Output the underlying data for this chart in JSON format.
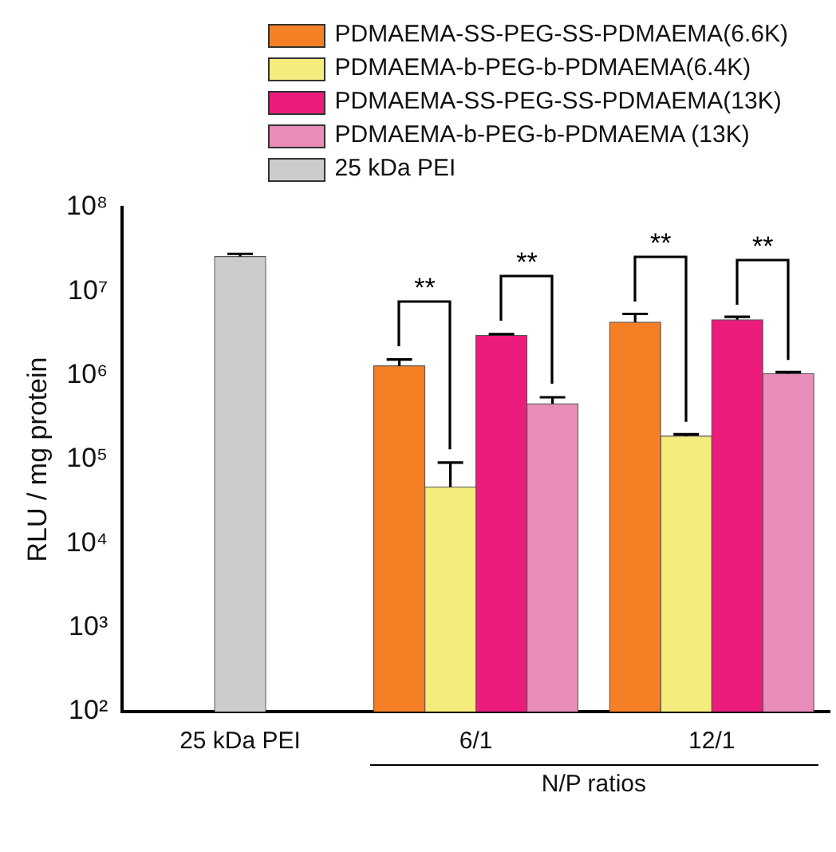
{
  "chart_data": {
    "type": "bar",
    "ylabel": "RLU / mg protein",
    "xlabel": "N/P ratios",
    "categories": [
      "25 kDa PEI",
      "6/1",
      "12/1"
    ],
    "series": [
      {
        "name": "PDMAEMA-SS-PEG-SS-PDMAEMA(6.6K)",
        "color": "#f47f24",
        "values": [
          null,
          1300000,
          4300000
        ],
        "errors": [
          null,
          [
            1300000,
            1550000
          ],
          [
            4300000,
            5400000
          ]
        ]
      },
      {
        "name": "PDMAEMA-b-PEG-b-PDMAEMA(6.4K)",
        "color": "#f4ec7c",
        "values": [
          null,
          47000,
          190000
        ],
        "errors": [
          null,
          [
            47000,
            92000
          ],
          [
            190000,
            200000
          ]
        ]
      },
      {
        "name": "PDMAEMA-SS-PEG-SS-PDMAEMA(13K)",
        "color": "#ec1c7c",
        "values": [
          null,
          3000000,
          4600000
        ],
        "errors": [
          null,
          [
            3000000,
            3100000
          ],
          [
            4600000,
            5000000
          ]
        ]
      },
      {
        "name": "PDMAEMA-b-PEG-b-PDMAEMA (13K)",
        "color": "#e88cb8",
        "values": [
          null,
          460000,
          1050000
        ],
        "errors": [
          null,
          [
            460000,
            550000
          ],
          [
            1050000,
            1100000
          ]
        ]
      },
      {
        "name": "25 kDa PEI",
        "color": "#cccccc",
        "values": [
          26000000,
          null,
          null
        ],
        "errors": [
          [
            26000000,
            28000000
          ],
          null,
          null
        ]
      }
    ],
    "log": "y",
    "ylim": [
      100,
      100000000
    ],
    "yticks": [
      {
        "value": 100,
        "label": "10²"
      },
      {
        "value": 1000,
        "label": "10³"
      },
      {
        "value": 10000,
        "label": "10⁴"
      },
      {
        "value": 100000,
        "label": "10⁵"
      },
      {
        "value": 1000000,
        "label": "10⁶"
      },
      {
        "value": 10000000,
        "label": "10⁷"
      },
      {
        "value": 100000000,
        "label": "10⁸"
      }
    ],
    "grid": false,
    "legend": "top right",
    "annotations": [
      "**",
      "**",
      "**",
      "**"
    ]
  }
}
